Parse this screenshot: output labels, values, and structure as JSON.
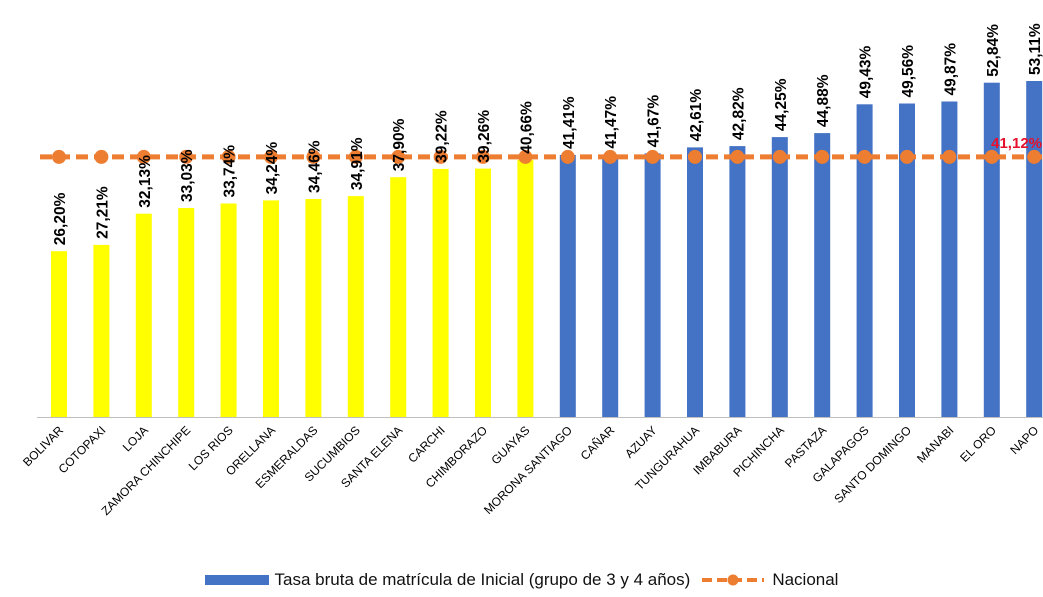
{
  "chart_data": {
    "type": "bar",
    "categories": [
      "BOLIVAR",
      "COTOPAXI",
      "LOJA",
      "ZAMORA CHINCHIPE",
      "LOS RIOS",
      "ORELLANA",
      "ESMERALDAS",
      "SUCUMBIOS",
      "SANTA ELENA",
      "CARCHI",
      "CHIMBORAZO",
      "GUAYAS",
      "MORONA SANTIAGO",
      "CAÑAR",
      "AZUAY",
      "TUNGURAHUA",
      "IMBABURA",
      "PICHINCHA",
      "PASTAZA",
      "GALAPAGOS",
      "SANTO DOMINGO",
      "MANABI",
      "EL ORO",
      "NAPO"
    ],
    "series": [
      {
        "name": "Tasa bruta de matrícula de Inicial (grupo de 3 y 4 años)",
        "values": [
          26.2,
          27.21,
          32.13,
          33.03,
          33.74,
          34.24,
          34.46,
          34.91,
          37.9,
          39.22,
          39.26,
          40.66,
          41.41,
          41.47,
          41.67,
          42.61,
          42.82,
          44.25,
          44.88,
          49.43,
          49.56,
          49.87,
          52.84,
          53.11
        ],
        "labels": [
          "26,20%",
          "27,21%",
          "32,13%",
          "33,03%",
          "33,74%",
          "34,24%",
          "34,46%",
          "34,91%",
          "37,90%",
          "39,22%",
          "39,26%",
          "40,66%",
          "41,41%",
          "41,47%",
          "41,67%",
          "42,61%",
          "42,82%",
          "44,25%",
          "44,88%",
          "49,43%",
          "49,56%",
          "49,87%",
          "52,84%",
          "53,11%"
        ]
      },
      {
        "name": "Nacional",
        "type": "line",
        "value": 41.12,
        "label": "41,12%"
      }
    ],
    "ylim": [
      0,
      53.11
    ],
    "grid": false,
    "legend_position": "bottom"
  },
  "colors": {
    "below_national": "#ffff00",
    "above_national": "#4472c4",
    "national_line": "#ed7d31",
    "national_label": "#e8112d",
    "axis": "#bfbfbf",
    "text": "#000000"
  }
}
